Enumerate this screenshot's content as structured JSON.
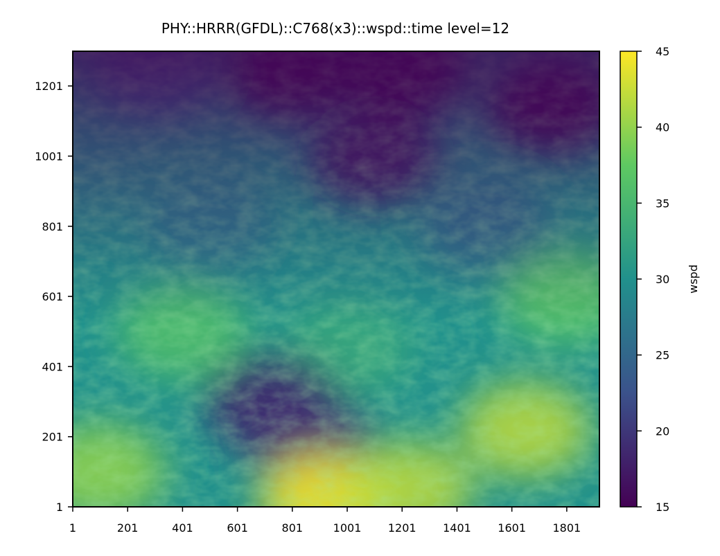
{
  "chart_data": {
    "type": "heatmap",
    "title": "PHY::HRRR(GFDL)::C768(x3)::wspd::time level=12",
    "xlabel": "",
    "ylabel": "",
    "x_ticks": [
      "1",
      "201",
      "401",
      "601",
      "801",
      "1001",
      "1201",
      "1401",
      "1601",
      "1801"
    ],
    "y_ticks": [
      "1",
      "201",
      "401",
      "601",
      "801",
      "1001",
      "1201"
    ],
    "xlim": [
      1,
      1920
    ],
    "ylim": [
      1,
      1300
    ],
    "colorbar": {
      "label": "wspd",
      "ticks": [
        "15",
        "20",
        "25",
        "30",
        "35",
        "40",
        "45"
      ],
      "range": [
        15,
        45
      ],
      "colormap": "viridis",
      "colors": [
        "#440154",
        "#3b528b",
        "#21918c",
        "#5ec962",
        "#fde725"
      ]
    },
    "field_description_points": [
      {
        "x": 300,
        "y": 1250,
        "value": 23
      },
      {
        "x": 800,
        "y": 1250,
        "value": 15
      },
      {
        "x": 1200,
        "y": 1250,
        "value": 15
      },
      {
        "x": 1750,
        "y": 1150,
        "value": 15
      },
      {
        "x": 1100,
        "y": 1000,
        "value": 17
      },
      {
        "x": 100,
        "y": 900,
        "value": 29
      },
      {
        "x": 500,
        "y": 800,
        "value": 27
      },
      {
        "x": 1500,
        "y": 800,
        "value": 26
      },
      {
        "x": 1800,
        "y": 600,
        "value": 37
      },
      {
        "x": 400,
        "y": 500,
        "value": 36
      },
      {
        "x": 1000,
        "y": 450,
        "value": 33
      },
      {
        "x": 720,
        "y": 300,
        "value": 18
      },
      {
        "x": 850,
        "y": 200,
        "value": 19
      },
      {
        "x": 920,
        "y": 20,
        "value": 45
      },
      {
        "x": 1220,
        "y": 50,
        "value": 42
      },
      {
        "x": 1650,
        "y": 220,
        "value": 42
      },
      {
        "x": 100,
        "y": 100,
        "value": 40
      }
    ]
  }
}
